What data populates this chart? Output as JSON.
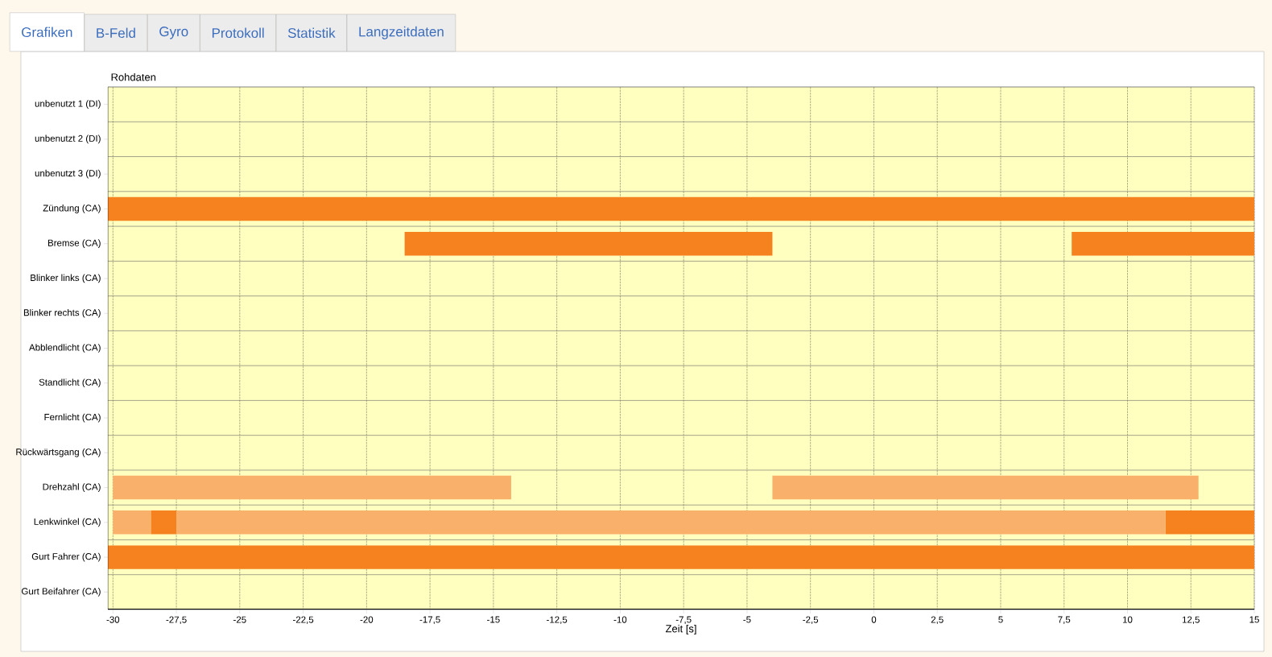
{
  "chart_data": {
    "type": "bar",
    "orientation": "horizontal",
    "title": "Rohdaten",
    "xlabel": "Zeit [s]",
    "categories": [
      "unbenutzt 1 (DI)",
      "unbenutzt 2 (DI)",
      "unbenutzt 3 (DI)",
      "Zündung (CA)",
      "Bremse (CA)",
      "Blinker links (CA)",
      "Blinker rechts (CA)",
      "Abblendlicht (CA)",
      "Standlicht (CA)",
      "Fernlicht (CA)",
      "Rückwärtsgang (CA)",
      "Drehzahl (CA)",
      "Lenkwinkel (CA)",
      "Gurt Fahrer (CA)",
      "Gurt Beifahrer (CA)"
    ],
    "series": [
      {
        "base": [
          null,
          null,
          null,
          -30.2,
          -18.5,
          null,
          null,
          null,
          null,
          null,
          null,
          -30,
          -30,
          -30.2,
          null
        ],
        "values": [
          null,
          null,
          null,
          45.2,
          14.5,
          null,
          null,
          null,
          null,
          null,
          null,
          15.7,
          1.5,
          45.2,
          null
        ],
        "colors": [
          null,
          null,
          null,
          "#f5821f",
          "#f5821f",
          null,
          null,
          null,
          null,
          null,
          null,
          "#f9b06a",
          "#f9b06a",
          "#f5821f",
          null
        ]
      },
      {
        "base": [
          null,
          null,
          null,
          null,
          7.8,
          null,
          null,
          null,
          null,
          null,
          null,
          -4,
          -28.5,
          null,
          null
        ],
        "values": [
          null,
          null,
          null,
          null,
          7.2,
          null,
          null,
          null,
          null,
          null,
          null,
          16.8,
          1,
          null,
          null
        ],
        "colors": [
          null,
          null,
          null,
          null,
          "#f5821f",
          null,
          null,
          null,
          null,
          null,
          null,
          "#f9b06a",
          "#f5821f",
          null,
          null
        ]
      },
      {
        "base": [
          null,
          null,
          null,
          null,
          null,
          null,
          null,
          null,
          null,
          null,
          null,
          null,
          -27.5,
          null,
          null
        ],
        "values": [
          null,
          null,
          null,
          null,
          null,
          null,
          null,
          null,
          null,
          null,
          null,
          null,
          39,
          null,
          null
        ],
        "colors": [
          null,
          null,
          null,
          null,
          null,
          null,
          null,
          null,
          null,
          null,
          null,
          null,
          "#f9b06a",
          null,
          null
        ]
      },
      {
        "base": [
          null,
          null,
          null,
          null,
          null,
          null,
          null,
          null,
          null,
          null,
          null,
          null,
          11.5,
          null,
          null
        ],
        "values": [
          null,
          null,
          null,
          null,
          null,
          null,
          null,
          null,
          null,
          null,
          null,
          null,
          3.5,
          null,
          null
        ],
        "colors": [
          null,
          null,
          null,
          null,
          null,
          null,
          null,
          null,
          null,
          null,
          null,
          null,
          "#f5821f",
          null,
          null
        ]
      }
    ],
    "xlim": [
      -30.2,
      15
    ],
    "xticks": [
      -30,
      {
        "value": -27.5,
        "label": "-27,5"
      },
      -25,
      {
        "value": -22.5,
        "label": "-22,5"
      },
      -20,
      {
        "value": -17.5,
        "label": "-17,5"
      },
      -15,
      {
        "value": -12.5,
        "label": "-12,5"
      },
      -10,
      {
        "value": -7.5,
        "label": "-7,5"
      },
      -5,
      {
        "value": -2.5,
        "label": "-2,5"
      },
      0,
      {
        "value": 2.5,
        "label": "2,5"
      },
      5,
      {
        "value": 7.5,
        "label": "7,5"
      },
      10,
      {
        "value": 12.5,
        "label": "12,5"
      },
      15
    ],
    "grid": true,
    "annotations": [
      "Grafiken",
      "B-Feld",
      "Gyro",
      "Protokoll",
      "Statistik",
      "Langzeitdaten"
    ]
  }
}
